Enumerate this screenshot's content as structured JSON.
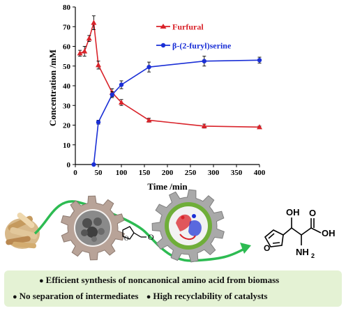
{
  "chart_data": {
    "type": "line",
    "xlabel": "Time /min",
    "ylabel": "Concentration /mM",
    "xlim": [
      0,
      400
    ],
    "ylim": [
      0,
      80
    ],
    "xticks": [
      0,
      50,
      100,
      150,
      200,
      250,
      300,
      350,
      400
    ],
    "yticks": [
      0,
      10,
      20,
      30,
      40,
      50,
      60,
      70,
      80
    ],
    "grid": false,
    "legend_position": "top-right",
    "series": [
      {
        "name": "Furfural",
        "color": "#d9232a",
        "marker": "triangle",
        "x": [
          10,
          20,
          30,
          40,
          50,
          80,
          100,
          160,
          280,
          400
        ],
        "y": [
          56.5,
          57.5,
          64.0,
          72.0,
          50.5,
          36.5,
          31.5,
          22.5,
          19.5,
          19.0
        ],
        "err": [
          1.5,
          2.5,
          1.5,
          3.5,
          2.0,
          2.0,
          1.5,
          1.0,
          1.0,
          0.5
        ]
      },
      {
        "name": "β-(2-furyl)serine",
        "color": "#1a2fd6",
        "marker": "circle",
        "x": [
          40,
          50,
          80,
          100,
          160,
          280,
          400
        ],
        "y": [
          0.0,
          21.5,
          35.5,
          40.5,
          49.5,
          52.5,
          53.0
        ],
        "err": [
          0.0,
          1.0,
          1.5,
          2.0,
          2.5,
          2.5,
          1.5
        ]
      }
    ]
  },
  "scheme": {
    "molecule_labels": {
      "hydroxyl": "OH",
      "acid_oxygen": "O",
      "acid_hydroxyl": "OH",
      "amine": "NH",
      "amine_subscript": "2",
      "furan_oxygen": "O",
      "intermediate_oxygen": "O"
    },
    "colors": {
      "arrow": "#2dbb52",
      "gear_left": "#b8a398",
      "gear_right": "#a9a9a9",
      "gear_right_inner": "#6fae39"
    }
  },
  "highlights": {
    "line1": "Efficient synthesis of  noncanonical amino acid from biomass",
    "line2a": "No separation of intermediates",
    "line2b": "High recyclability of catalysts",
    "bullet": "●"
  }
}
